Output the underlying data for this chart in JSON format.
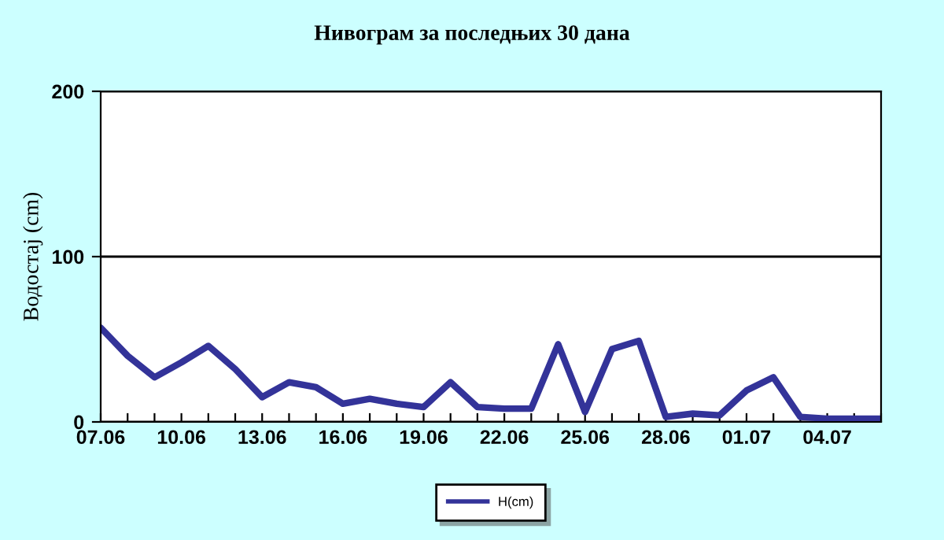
{
  "chart_data": {
    "type": "line",
    "title": "Нивограм за последњих 30 дана",
    "ylabel": "Водостај (cm)",
    "categories": [
      "07.06",
      null,
      null,
      "10.06",
      null,
      null,
      "13.06",
      null,
      null,
      "16.06",
      null,
      null,
      "19.06",
      null,
      null,
      "22.06",
      null,
      null,
      "25.06",
      null,
      null,
      "28.06",
      null,
      null,
      "01.07",
      null,
      null,
      "04.07",
      null,
      null
    ],
    "series": [
      {
        "name": "H(cm)",
        "color": "#333399",
        "values": [
          57,
          40,
          27,
          36,
          46,
          32,
          15,
          24,
          21,
          11,
          14,
          11,
          9,
          24,
          9,
          8,
          8,
          47,
          6,
          44,
          49,
          3,
          5,
          4,
          19,
          27,
          3,
          2,
          2,
          2
        ]
      }
    ],
    "ylim": [
      0,
      200
    ],
    "yticks": [
      0,
      100,
      200
    ],
    "grid": "y",
    "legend": "bottom",
    "marker": "none",
    "line_style": "solid"
  }
}
